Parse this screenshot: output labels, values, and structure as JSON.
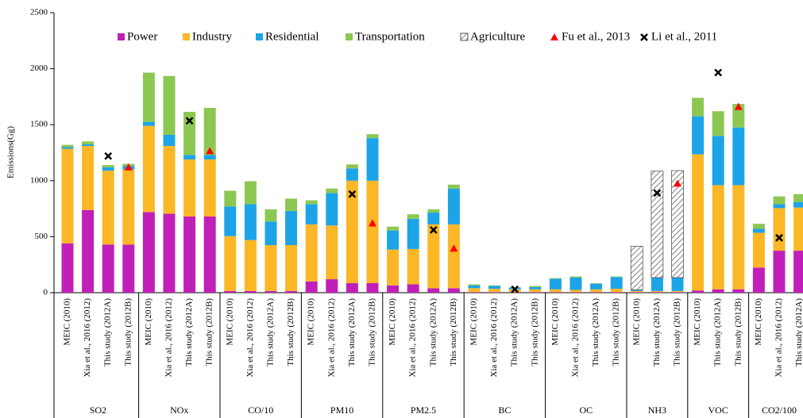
{
  "chart_data": {
    "type": "bar",
    "stacked": true,
    "y_label": "Emissions(Gg)",
    "legend": "top",
    "ylim": [
      0,
      2500
    ],
    "yticks": [
      0,
      500,
      1000,
      1500,
      2000,
      2500
    ],
    "groups": [
      {
        "name": "SO2",
        "categories": [
          "MEIC (2010)",
          "Xia et al., 2016 (2012)",
          "This study (2012A)",
          "This study (2012B)"
        ]
      },
      {
        "name": "NOx",
        "categories": [
          "MEIC (2010)",
          "Xia et al., 2016 (2012)",
          "This study (2012A)",
          "This study (2012B)"
        ]
      },
      {
        "name": "CO/10",
        "categories": [
          "MEIC (2010)",
          "Xia et al., 2016 (2012)",
          "This study (2012A)",
          "This study (2012B)"
        ]
      },
      {
        "name": "PM10",
        "categories": [
          "MEIC (2010)",
          "Xia et al., 2016 (2012)",
          "This study (2012A)",
          "This study (2012B)"
        ]
      },
      {
        "name": "PM2.5",
        "categories": [
          "MEIC (2010)",
          "Xia et al., 2016 (2012)",
          "This study (2012A)",
          "This study (2012B)"
        ]
      },
      {
        "name": "BC",
        "categories": [
          "MEIC (2010)",
          "Xia et al., 2016 (2012)",
          "This study (2012A)",
          "This study (2012B)"
        ]
      },
      {
        "name": "OC",
        "categories": [
          "MEIC (2010)",
          "Xia et al., 2016 (2012)",
          "This study (2012A)",
          "This study (2012B)"
        ]
      },
      {
        "name": "NH3",
        "categories": [
          "MEIC (2010)",
          "This study (2012A)",
          "This study (2012B)"
        ]
      },
      {
        "name": "VOC",
        "categories": [
          "MEIC (2010)",
          "This study (2012A)",
          "This study (2012B)"
        ]
      },
      {
        "name": "CO2/100",
        "categories": [
          "MEIC (2010)",
          "Xia et al., 2016 (2012)",
          "This study (2012A)"
        ]
      }
    ],
    "series": [
      {
        "name": "Power",
        "color": "#c020b8",
        "values": [
          440,
          738,
          430,
          430,
          720,
          705,
          680,
          680,
          15,
          15,
          15,
          15,
          100,
          120,
          85,
          85,
          65,
          75,
          40,
          40,
          5,
          5,
          5,
          5,
          5,
          5,
          5,
          5,
          5,
          5,
          5,
          20,
          30,
          30,
          225,
          375,
          375
        ]
      },
      {
        "name": "Industry",
        "color": "#fbb726",
        "values": [
          845,
          572,
          660,
          670,
          770,
          605,
          510,
          510,
          490,
          455,
          410,
          410,
          510,
          480,
          915,
          915,
          320,
          315,
          570,
          570,
          35,
          30,
          25,
          25,
          25,
          20,
          25,
          30,
          10,
          10,
          10,
          1215,
          930,
          930,
          310,
          380,
          385
        ]
      },
      {
        "name": "Residential",
        "color": "#1ca4e8",
        "values": [
          15,
          15,
          30,
          30,
          35,
          100,
          40,
          40,
          265,
          320,
          210,
          305,
          180,
          290,
          110,
          380,
          170,
          270,
          105,
          320,
          25,
          25,
          15,
          20,
          95,
          110,
          50,
          105,
          10,
          120,
          120,
          340,
          440,
          515,
          35,
          35,
          50
        ]
      },
      {
        "name": "Transportation",
        "color": "#8dc753",
        "values": [
          20,
          25,
          20,
          20,
          440,
          525,
          385,
          420,
          140,
          205,
          110,
          110,
          35,
          40,
          35,
          35,
          35,
          40,
          30,
          35,
          10,
          5,
          5,
          10,
          5,
          10,
          5,
          5,
          null,
          null,
          null,
          165,
          220,
          210,
          45,
          70,
          70
        ]
      },
      {
        "name": "Agriculture",
        "color": "#7f7f7f",
        "hatch": true,
        "values": [
          null,
          null,
          null,
          null,
          null,
          null,
          null,
          null,
          null,
          null,
          null,
          null,
          null,
          null,
          null,
          null,
          null,
          null,
          null,
          null,
          null,
          null,
          null,
          null,
          null,
          null,
          null,
          null,
          390,
          950,
          955,
          null,
          null,
          null,
          null,
          null,
          null
        ]
      }
    ],
    "markers": [
      {
        "name": "Fu et al., 2013",
        "color": "#ff0000",
        "symbol": "triangle",
        "values": [
          null,
          null,
          null,
          1120,
          null,
          null,
          null,
          1265,
          null,
          null,
          null,
          null,
          null,
          null,
          null,
          620,
          null,
          null,
          null,
          395,
          null,
          null,
          null,
          null,
          null,
          null,
          null,
          null,
          null,
          null,
          975,
          null,
          null,
          1660,
          null,
          null,
          null
        ]
      },
      {
        "name": "Li et al., 2011",
        "color": "#000000",
        "symbol": "cross",
        "values": [
          null,
          null,
          1220,
          null,
          null,
          null,
          1535,
          null,
          null,
          null,
          null,
          null,
          null,
          null,
          880,
          null,
          null,
          null,
          560,
          null,
          null,
          null,
          30,
          null,
          null,
          null,
          null,
          null,
          null,
          890,
          null,
          null,
          1965,
          null,
          null,
          490,
          null
        ]
      }
    ]
  }
}
